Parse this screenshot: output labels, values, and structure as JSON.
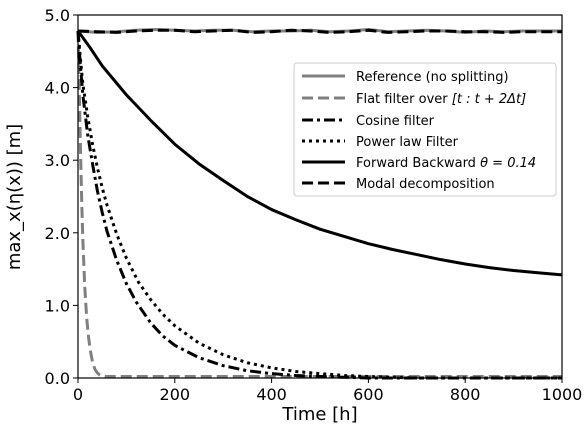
{
  "chart_data": {
    "type": "line",
    "xlabel": "Time [h]",
    "ylabel": "max_x(η(x)) [m]",
    "xlim": [
      0,
      1000
    ],
    "ylim": [
      0.0,
      5.0
    ],
    "x_ticks": [
      "0",
      "200",
      "400",
      "600",
      "800",
      "1000"
    ],
    "y_ticks": [
      "0.0",
      "1.0",
      "2.0",
      "3.0",
      "4.0",
      "5.0"
    ],
    "grid": false,
    "legend_position": "upper-right",
    "series": [
      {
        "name": "Reference (no splitting)",
        "color": "#808080",
        "dash": "solid",
        "x": [
          0,
          40,
          80,
          120,
          160,
          200,
          240,
          280,
          320,
          360,
          400,
          440,
          480,
          520,
          560,
          600,
          640,
          680,
          720,
          760,
          800,
          840,
          880,
          920,
          960,
          1000
        ],
        "y": [
          4.78,
          4.76,
          4.77,
          4.79,
          4.8,
          4.79,
          4.78,
          4.79,
          4.79,
          4.77,
          4.78,
          4.78,
          4.79,
          4.77,
          4.78,
          4.8,
          4.77,
          4.78,
          4.79,
          4.78,
          4.76,
          4.78,
          4.77,
          4.78,
          4.78,
          4.78
        ]
      },
      {
        "name": "Flat filter over [t : t + 2Δt]",
        "color": "#808080",
        "dash": "dashed",
        "x": [
          0,
          2,
          4,
          6,
          8,
          10,
          14,
          18,
          22,
          26,
          30,
          35,
          40,
          45,
          50,
          60,
          80,
          100,
          150,
          200,
          300,
          400,
          500,
          600,
          700,
          800,
          900,
          1000
        ],
        "y": [
          4.78,
          4.2,
          3.5,
          2.9,
          2.35,
          1.9,
          1.25,
          0.82,
          0.55,
          0.36,
          0.22,
          0.12,
          0.07,
          0.04,
          0.03,
          0.02,
          0.02,
          0.02,
          0.02,
          0.02,
          0.02,
          0.02,
          0.02,
          0.02,
          0.02,
          0.02,
          0.02,
          0.02
        ]
      },
      {
        "name": "Cosine filter",
        "color": "#000000",
        "dash": "dashdot",
        "x": [
          0,
          5,
          10,
          20,
          30,
          40,
          50,
          60,
          80,
          100,
          120,
          150,
          175,
          200,
          250,
          300,
          350,
          400,
          450,
          500,
          550,
          600,
          650,
          700,
          800,
          900,
          1000
        ],
        "y": [
          4.78,
          4.3,
          3.9,
          3.35,
          2.95,
          2.58,
          2.28,
          2.02,
          1.62,
          1.3,
          1.05,
          0.76,
          0.58,
          0.45,
          0.28,
          0.17,
          0.1,
          0.06,
          0.035,
          0.02,
          0.01,
          0.0,
          0.0,
          0.0,
          0.0,
          0.0,
          0.0
        ]
      },
      {
        "name": "Power law Filter",
        "color": "#000000",
        "dash": "dotted",
        "x": [
          0,
          5,
          10,
          20,
          30,
          40,
          50,
          60,
          80,
          100,
          125,
          150,
          175,
          200,
          250,
          300,
          350,
          400,
          450,
          500,
          550,
          600,
          650,
          700,
          800,
          900,
          1000
        ],
        "y": [
          4.78,
          4.4,
          4.05,
          3.6,
          3.22,
          2.9,
          2.62,
          2.38,
          1.98,
          1.65,
          1.32,
          1.08,
          0.88,
          0.72,
          0.48,
          0.32,
          0.21,
          0.14,
          0.09,
          0.06,
          0.035,
          0.02,
          0.01,
          0.0,
          0.0,
          0.0,
          0.0
        ]
      },
      {
        "name": "Forward Backward θ = 0.14",
        "color": "#000000",
        "dash": "solid",
        "x": [
          0,
          25,
          50,
          100,
          150,
          200,
          250,
          300,
          350,
          400,
          450,
          500,
          550,
          600,
          650,
          700,
          750,
          800,
          850,
          900,
          950,
          1000
        ],
        "y": [
          4.78,
          4.55,
          4.3,
          3.9,
          3.55,
          3.22,
          2.95,
          2.72,
          2.5,
          2.32,
          2.18,
          2.05,
          1.95,
          1.85,
          1.77,
          1.7,
          1.63,
          1.57,
          1.52,
          1.48,
          1.45,
          1.42
        ]
      },
      {
        "name": "Modal decomposition",
        "color": "#000000",
        "dash": "dashed",
        "x": [
          0,
          40,
          80,
          120,
          160,
          200,
          240,
          280,
          320,
          360,
          400,
          440,
          480,
          520,
          560,
          600,
          640,
          680,
          720,
          760,
          800,
          840,
          880,
          920,
          960,
          1000
        ],
        "y": [
          4.78,
          4.77,
          4.76,
          4.78,
          4.79,
          4.79,
          4.77,
          4.78,
          4.79,
          4.76,
          4.77,
          4.79,
          4.78,
          4.76,
          4.77,
          4.79,
          4.76,
          4.77,
          4.78,
          4.78,
          4.77,
          4.77,
          4.76,
          4.77,
          4.77,
          4.77
        ]
      }
    ]
  },
  "legend": {
    "reference": "Reference (no splitting)",
    "flat_prefix": "Flat filter over ",
    "flat_interval": "[t : t + 2Δt]",
    "cosine": "Cosine filter",
    "power": "Power law Filter",
    "fb_prefix": "Forward Backward ",
    "fb_param": "θ = 0.14",
    "modal": "Modal decomposition"
  }
}
